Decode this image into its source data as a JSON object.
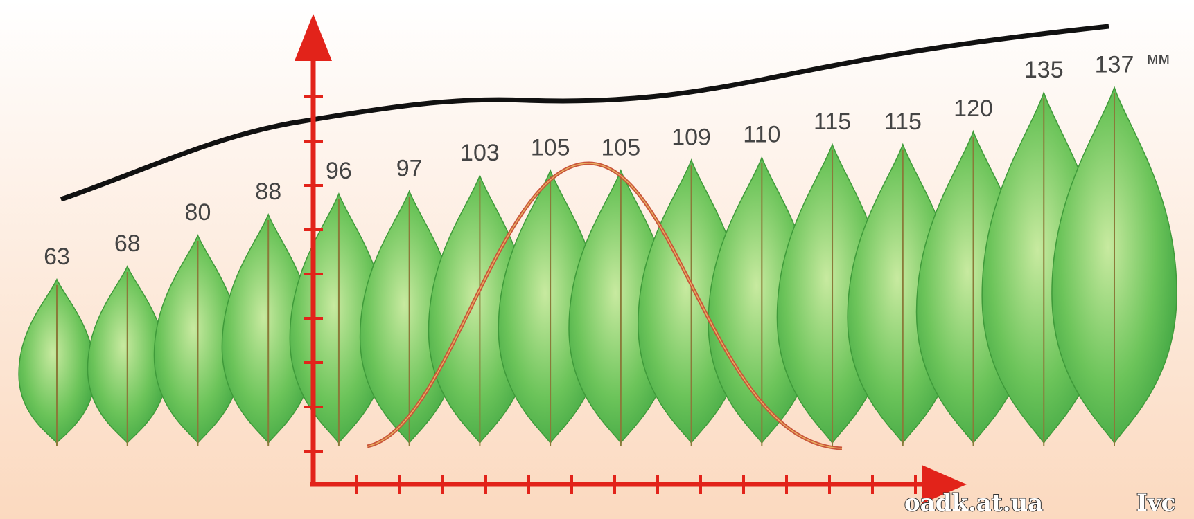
{
  "leaves": [
    63,
    68,
    80,
    88,
    96,
    97,
    103,
    105,
    105,
    109,
    110,
    115,
    115,
    120,
    135,
    137
  ],
  "unit": "мм",
  "watermark": [
    "oadk.at.ua",
    "Ivc"
  ]
}
